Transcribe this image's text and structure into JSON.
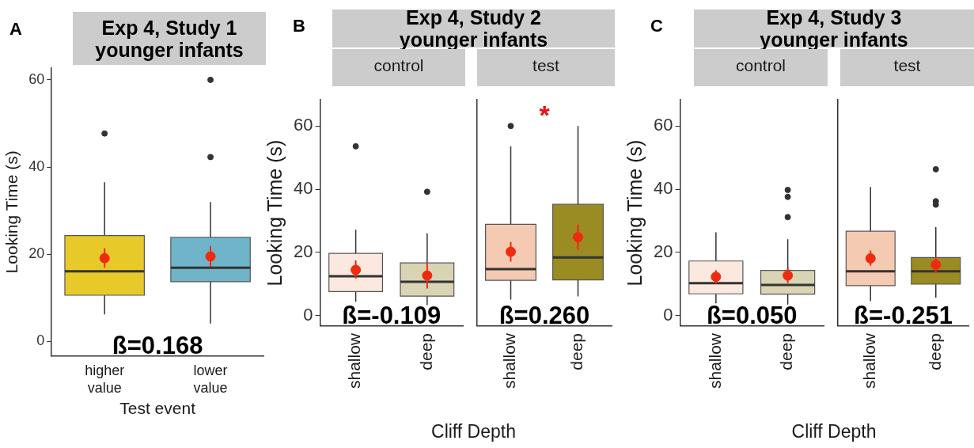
{
  "chart_data": [
    {
      "type": "box",
      "title": "Exp 4, Study 1\nyounger infants",
      "xlabel": "Test event",
      "ylabel": "Looking Time (s)",
      "categories": [
        "higher value",
        "lower value"
      ],
      "ylim": [
        -3.3,
        62.7
      ],
      "yticks": [
        0,
        20,
        40,
        60
      ],
      "annotations": [
        "A",
        "ß=0.168"
      ],
      "series": [
        {
          "type": "box",
          "colors": [
            "#e8c92a",
            "#6fb4c9"
          ],
          "boxes": [
            {
              "low": 6.2,
              "q1": 10.6,
              "median": 16.1,
              "q3": 24.3,
              "high": 36.5,
              "outliers": [
                47.7
              ]
            },
            {
              "low": 4.1,
              "q1": 13.7,
              "median": 16.9,
              "q3": 23.9,
              "high": 32.0,
              "outliers": [
                60,
                42.3
              ]
            }
          ]
        },
        {
          "type": "scatter",
          "values": [
            19.1,
            19.5
          ],
          "errors": [
            [
              16.9,
              21.4
            ],
            [
              17.1,
              21.9
            ]
          ],
          "color": "#f02a0f",
          "marker": "circle"
        }
      ]
    },
    {
      "type": "box",
      "title": "Exp 4, Study 2\nyounger infants",
      "subtitle": "control",
      "xlabel": "Cliff Depth",
      "ylabel": "Looking Time (s)",
      "categories": [
        "shallow",
        "deep"
      ],
      "ylim": [
        -3.3,
        68.3
      ],
      "yticks": [
        0,
        20,
        40,
        60
      ],
      "annotations": [
        "B",
        "ß=-0.109"
      ],
      "series": [
        {
          "type": "box",
          "colors": [
            "#fbe8df",
            "#d9d4b4"
          ],
          "boxes": [
            {
              "low": 4.4,
              "q1": 7.6,
              "median": 12.5,
              "q3": 19.7,
              "high": 27.2,
              "outliers": [
                53.6
              ]
            },
            {
              "low": 3.3,
              "q1": 6.2,
              "median": 10.7,
              "q3": 16.7,
              "high": 26.1,
              "outliers": [
                39.2
              ]
            }
          ]
        },
        {
          "type": "scatter",
          "values": [
            14.5,
            12.7
          ],
          "errors": [
            [
              11.7,
              17.5
            ],
            [
              8.6,
              16.5
            ]
          ],
          "color": "#f02a0f",
          "marker": "circle"
        }
      ]
    },
    {
      "type": "box",
      "subtitle": "test",
      "categories": [
        "shallow",
        "deep"
      ],
      "ylim": [
        -3.3,
        68.3
      ],
      "yticks": [
        0,
        20,
        40,
        60
      ],
      "tick_labels": "x",
      "annotations": [
        "ß=0.260",
        "*"
      ],
      "series": [
        {
          "type": "box",
          "colors": [
            "#f4cab2",
            "#9a8b23"
          ],
          "boxes": [
            {
              "low": 5.1,
              "q1": 11.2,
              "median": 14.7,
              "q3": 28.9,
              "high": 53.6,
              "outliers": [
                60
              ]
            },
            {
              "low": 6.1,
              "q1": 11.3,
              "median": 18.4,
              "q3": 35.2,
              "high": 60
            }
          ]
        },
        {
          "type": "scatter",
          "values": [
            20.2,
            24.8
          ],
          "errors": [
            [
              17.1,
              23.3
            ],
            [
              20.9,
              28.8
            ]
          ],
          "color": "#f02a0f",
          "marker": "circle"
        }
      ]
    },
    {
      "type": "box",
      "title": "Exp 4, Study 3\nyounger infants",
      "subtitle": "control",
      "xlabel": "Cliff Depth",
      "ylabel": "Looking Time (s)",
      "categories": [
        "shallow",
        "deep"
      ],
      "ylim": [
        -3.3,
        68.3
      ],
      "yticks": [
        0,
        20,
        40,
        60
      ],
      "annotations": [
        "C",
        "ß=0.050"
      ],
      "series": [
        {
          "type": "box",
          "colors": [
            "#fbe8df",
            "#d9d4b4"
          ],
          "boxes": [
            {
              "low": 3.9,
              "q1": 6.9,
              "median": 10.3,
              "q3": 17.3,
              "high": 26.4
            },
            {
              "low": 3.5,
              "q1": 6.8,
              "median": 9.7,
              "q3": 14.3,
              "high": 24.2,
              "outliers": [
                39.8,
                37.6,
                31.2
              ]
            }
          ]
        },
        {
          "type": "scatter",
          "values": [
            12.3,
            12.7
          ],
          "errors": [
            [
              10.1,
              14.4
            ],
            [
              10.3,
              15.1
            ]
          ],
          "color": "#f02a0f",
          "marker": "circle"
        }
      ]
    },
    {
      "type": "box",
      "subtitle": "test",
      "categories": [
        "shallow",
        "deep"
      ],
      "ylim": [
        -3.3,
        68.3
      ],
      "yticks": [
        0,
        20,
        40,
        60
      ],
      "tick_labels": "x",
      "annotations": [
        "ß=-0.251"
      ],
      "series": [
        {
          "type": "box",
          "colors": [
            "#f4cab2",
            "#9a8b23"
          ],
          "boxes": [
            {
              "low": 4.6,
              "q1": 9.5,
              "median": 14.0,
              "q3": 26.7,
              "high": 40.7
            },
            {
              "low": 5.7,
              "q1": 10.0,
              "median": 14.0,
              "q3": 18.4,
              "high": 28.0,
              "outliers": [
                46.3,
                36.2,
                35.1
              ]
            }
          ]
        },
        {
          "type": "scatter",
          "values": [
            18.1,
            16.1
          ],
          "errors": [
            [
              15.8,
              20.6
            ],
            [
              13.4,
              18.5
            ]
          ],
          "color": "#f02a0f",
          "marker": "circle"
        }
      ]
    }
  ]
}
